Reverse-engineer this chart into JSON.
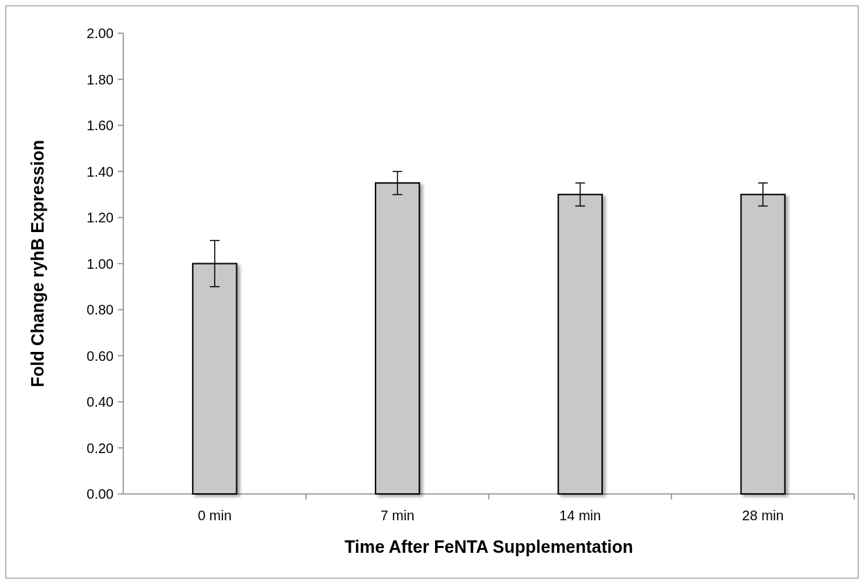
{
  "chart_data": {
    "type": "bar",
    "xlabel": "Time After FeNTA Supplementation",
    "ylabel": "Fold Change ryhB Expression",
    "categories": [
      "0 min",
      "7 min",
      "14 min",
      "28 min"
    ],
    "values": [
      1.0,
      1.35,
      1.3,
      1.3
    ],
    "errors": [
      0.1,
      0.05,
      0.05,
      0.05
    ],
    "color": "#c8c8c8",
    "ylim": [
      0,
      2
    ],
    "yticks": [
      {
        "value": 0,
        "label": "0.00"
      },
      {
        "value": 0.2,
        "label": "0.20"
      },
      {
        "value": 0.4,
        "label": "0.40"
      },
      {
        "value": 0.6,
        "label": "0.60"
      },
      {
        "value": 0.8,
        "label": "0.80"
      },
      {
        "value": 1,
        "label": "1.00"
      },
      {
        "value": 1.2,
        "label": "1.20"
      },
      {
        "value": 1.4,
        "label": "1.40"
      },
      {
        "value": 1.6,
        "label": "1.60"
      },
      {
        "value": 1.8,
        "label": "1.80"
      },
      {
        "value": 2,
        "label": "2.00"
      }
    ],
    "grid": false
  }
}
